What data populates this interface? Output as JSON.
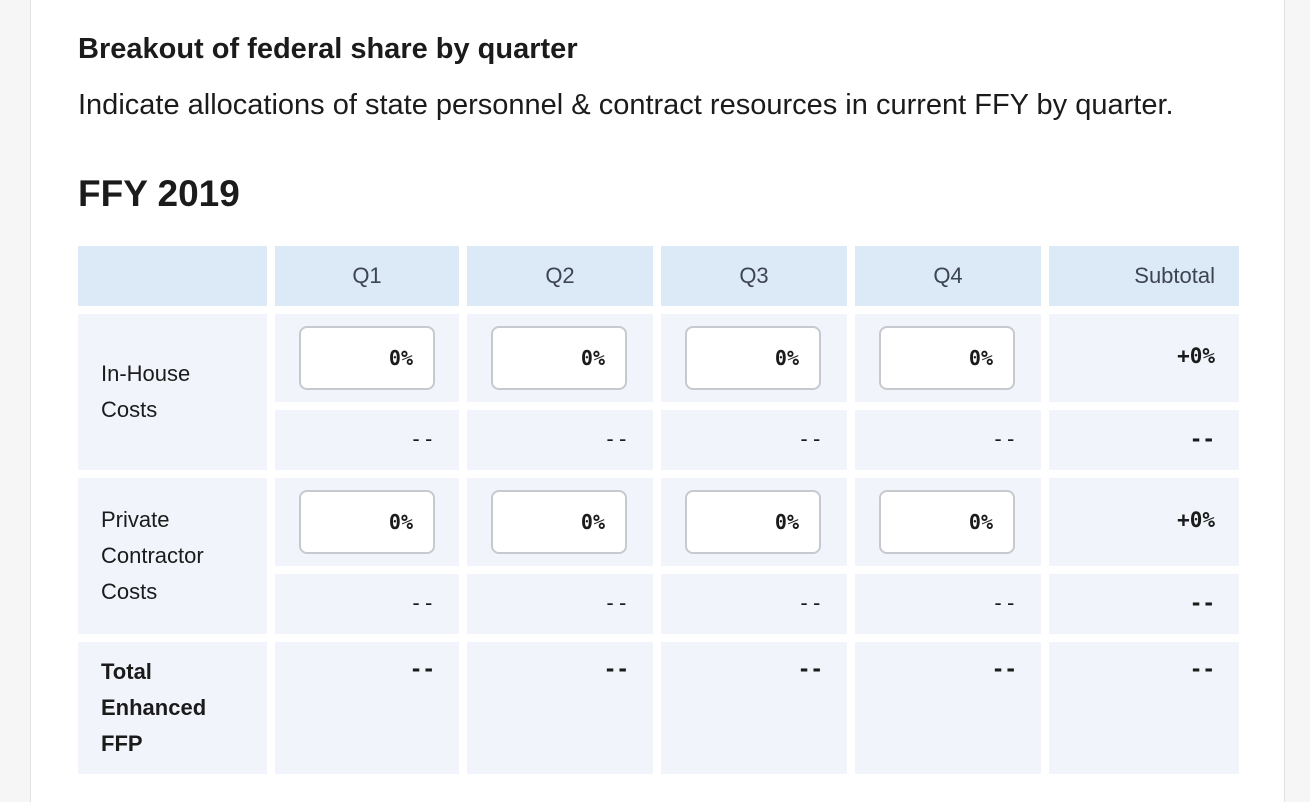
{
  "section": {
    "title": "Breakout of federal share by quarter",
    "description": "Indicate allocations of state personnel & contract resources in current FFY by quarter."
  },
  "year_heading": "FFY 2019",
  "table": {
    "headers": {
      "blank": "",
      "q1": "Q1",
      "q2": "Q2",
      "q3": "Q3",
      "q4": "Q4",
      "subtotal": "Subtotal"
    },
    "in_house": {
      "label_line1": "In-House",
      "label_line2": "Costs",
      "inputs": [
        "0%",
        "0%",
        "0%",
        "0%"
      ],
      "subtotal_pct": "+0%",
      "amounts": [
        "--",
        "--",
        "--",
        "--"
      ],
      "subtotal_amount": "--"
    },
    "contractor": {
      "label_line1": "Private",
      "label_line2": "Contractor",
      "label_line3": "Costs",
      "inputs": [
        "0%",
        "0%",
        "0%",
        "0%"
      ],
      "subtotal_pct": "+0%",
      "amounts": [
        "--",
        "--",
        "--",
        "--"
      ],
      "subtotal_amount": "--"
    },
    "total": {
      "label_line1": "Total",
      "label_line2": "Enhanced",
      "label_line3": "FFP",
      "amounts": [
        "--",
        "--",
        "--",
        "--"
      ],
      "subtotal_amount": "--"
    }
  }
}
